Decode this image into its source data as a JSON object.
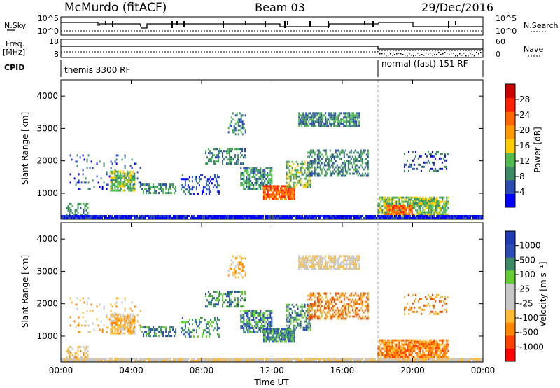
{
  "header": {
    "station": "McMurdo (fitACF)",
    "beam": "Beam 03",
    "date": "29/Dec/2016"
  },
  "summary": {
    "nsky_label": "N.Sky",
    "nsky_ticks": [
      "10^5",
      "10^0"
    ],
    "nsearch_label": "N.Search",
    "nsearch_ticks": [
      "10^5",
      "10^0"
    ],
    "freq_label": "Freq.",
    "freq_unit": "[MHz]",
    "freq_ticks": [
      "18",
      "8"
    ],
    "nave_label": "Nave",
    "nave_ticks": [
      "60",
      "0"
    ],
    "cpid_label": "CPID",
    "cpid_left": "themis 3300 RF",
    "cpid_right": "normal (fast) 151 RF"
  },
  "colors": {
    "power": [
      "#0000ff",
      "#2b4db3",
      "#3d8c66",
      "#4dbb4d",
      "#ffcc00",
      "#ff9900",
      "#ff6600",
      "#ff2200",
      "#cc0000"
    ],
    "velocity": [
      "#ff0000",
      "#ff4400",
      "#ff8800",
      "#ffbb33",
      "#c8c8c8",
      "#c8c8c8",
      "#66cc33",
      "#3d8c66",
      "#2b4db3",
      "#1e3cb4"
    ]
  },
  "chart_data": [
    {
      "type": "heatmap",
      "xlabel": "",
      "ylabel": "Slant Range [km]",
      "xlim": [
        "00:00",
        "24:00"
      ],
      "ylim": [
        200,
        4500
      ],
      "yticks": [
        "4000",
        "3000",
        "2000",
        "1000"
      ],
      "colorbar": {
        "label": "Power [dB]",
        "ticks": [
          "28",
          "24",
          "20",
          "16",
          "12",
          "8",
          "4"
        ],
        "range": [
          0,
          30
        ]
      }
    },
    {
      "type": "heatmap",
      "xlabel": "Time UT",
      "ylabel": "Slant Range [km]",
      "xticks": [
        "00:00",
        "04:00",
        "08:00",
        "12:00",
        "16:00",
        "20:00",
        "00:00"
      ],
      "xlim": [
        "00:00",
        "24:00"
      ],
      "ylim": [
        200,
        4500
      ],
      "yticks": [
        "4000",
        "3000",
        "2000",
        "1000"
      ],
      "colorbar": {
        "label": "Velocity [m s⁻¹]",
        "ticks": [
          "1000",
          "500",
          "100",
          "25",
          "-25",
          "-100",
          "-500",
          "-1000"
        ],
        "range": [
          -1200,
          1200
        ]
      }
    }
  ]
}
